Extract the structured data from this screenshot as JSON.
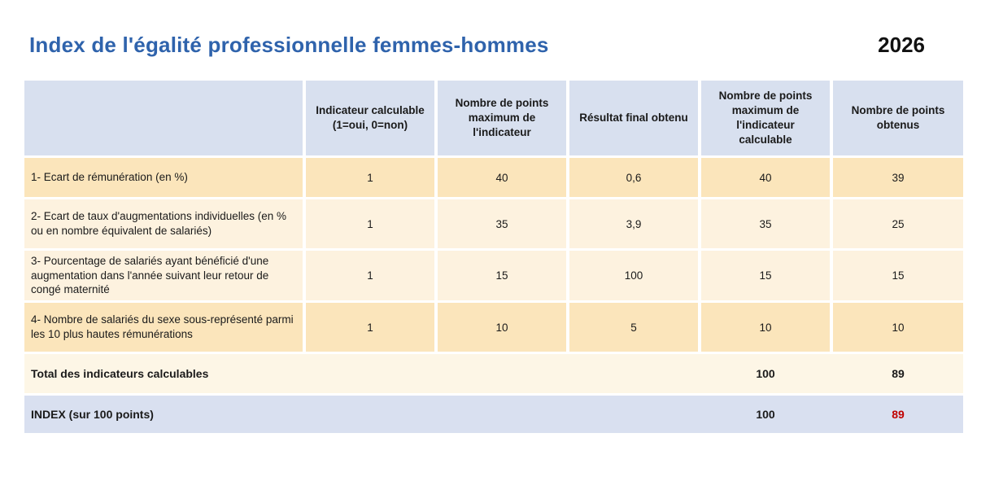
{
  "page": {
    "title": "Index de l'égalité professionnelle femmes-hommes",
    "year": "2026"
  },
  "colors": {
    "title_blue": "#2f63ac",
    "header_bg": "#d8e0ef",
    "row_wheat": "#fbe5bb",
    "row_cream": "#fdf2df",
    "total_bg": "#fdf6e6",
    "index_bg": "#d9e0f0",
    "index_score_red": "#c00000"
  },
  "table": {
    "columns": [
      "",
      "Indicateur calculable\n(1=oui, 0=non)",
      "Nombre de points\nmaximum de\nl'indicateur",
      "Résultat final obtenu",
      "Nombre de points\nmaximum de\nl'indicateur\ncalculable",
      "Nombre de points\nobtenus"
    ],
    "rows": [
      {
        "label": "1- Ecart de rémunération (en %)",
        "calculable": "1",
        "max_points": "40",
        "result": "0,6",
        "max_calculable": "40",
        "points": "39"
      },
      {
        "label": "2- Ecart de taux d'augmentations individuelles (en % ou en nombre équivalent de salariés)",
        "calculable": "1",
        "max_points": "35",
        "result": "3,9",
        "max_calculable": "35",
        "points": "25"
      },
      {
        "label": "3- Pourcentage de salariés ayant bénéficié d'une augmentation dans l'année suivant leur retour de congé maternité",
        "calculable": "1",
        "max_points": "15",
        "result": "100",
        "max_calculable": "15",
        "points": "15"
      },
      {
        "label": "4- Nombre de salariés du sexe sous-représenté parmi les 10 plus hautes rémunérations",
        "calculable": "1",
        "max_points": "10",
        "result": "5",
        "max_calculable": "10",
        "points": "10"
      }
    ],
    "total": {
      "label": "Total des indicateurs calculables",
      "max_calculable": "100",
      "points": "89"
    },
    "index": {
      "label": "INDEX (sur 100 points)",
      "max_calculable": "100",
      "points": "89"
    }
  }
}
